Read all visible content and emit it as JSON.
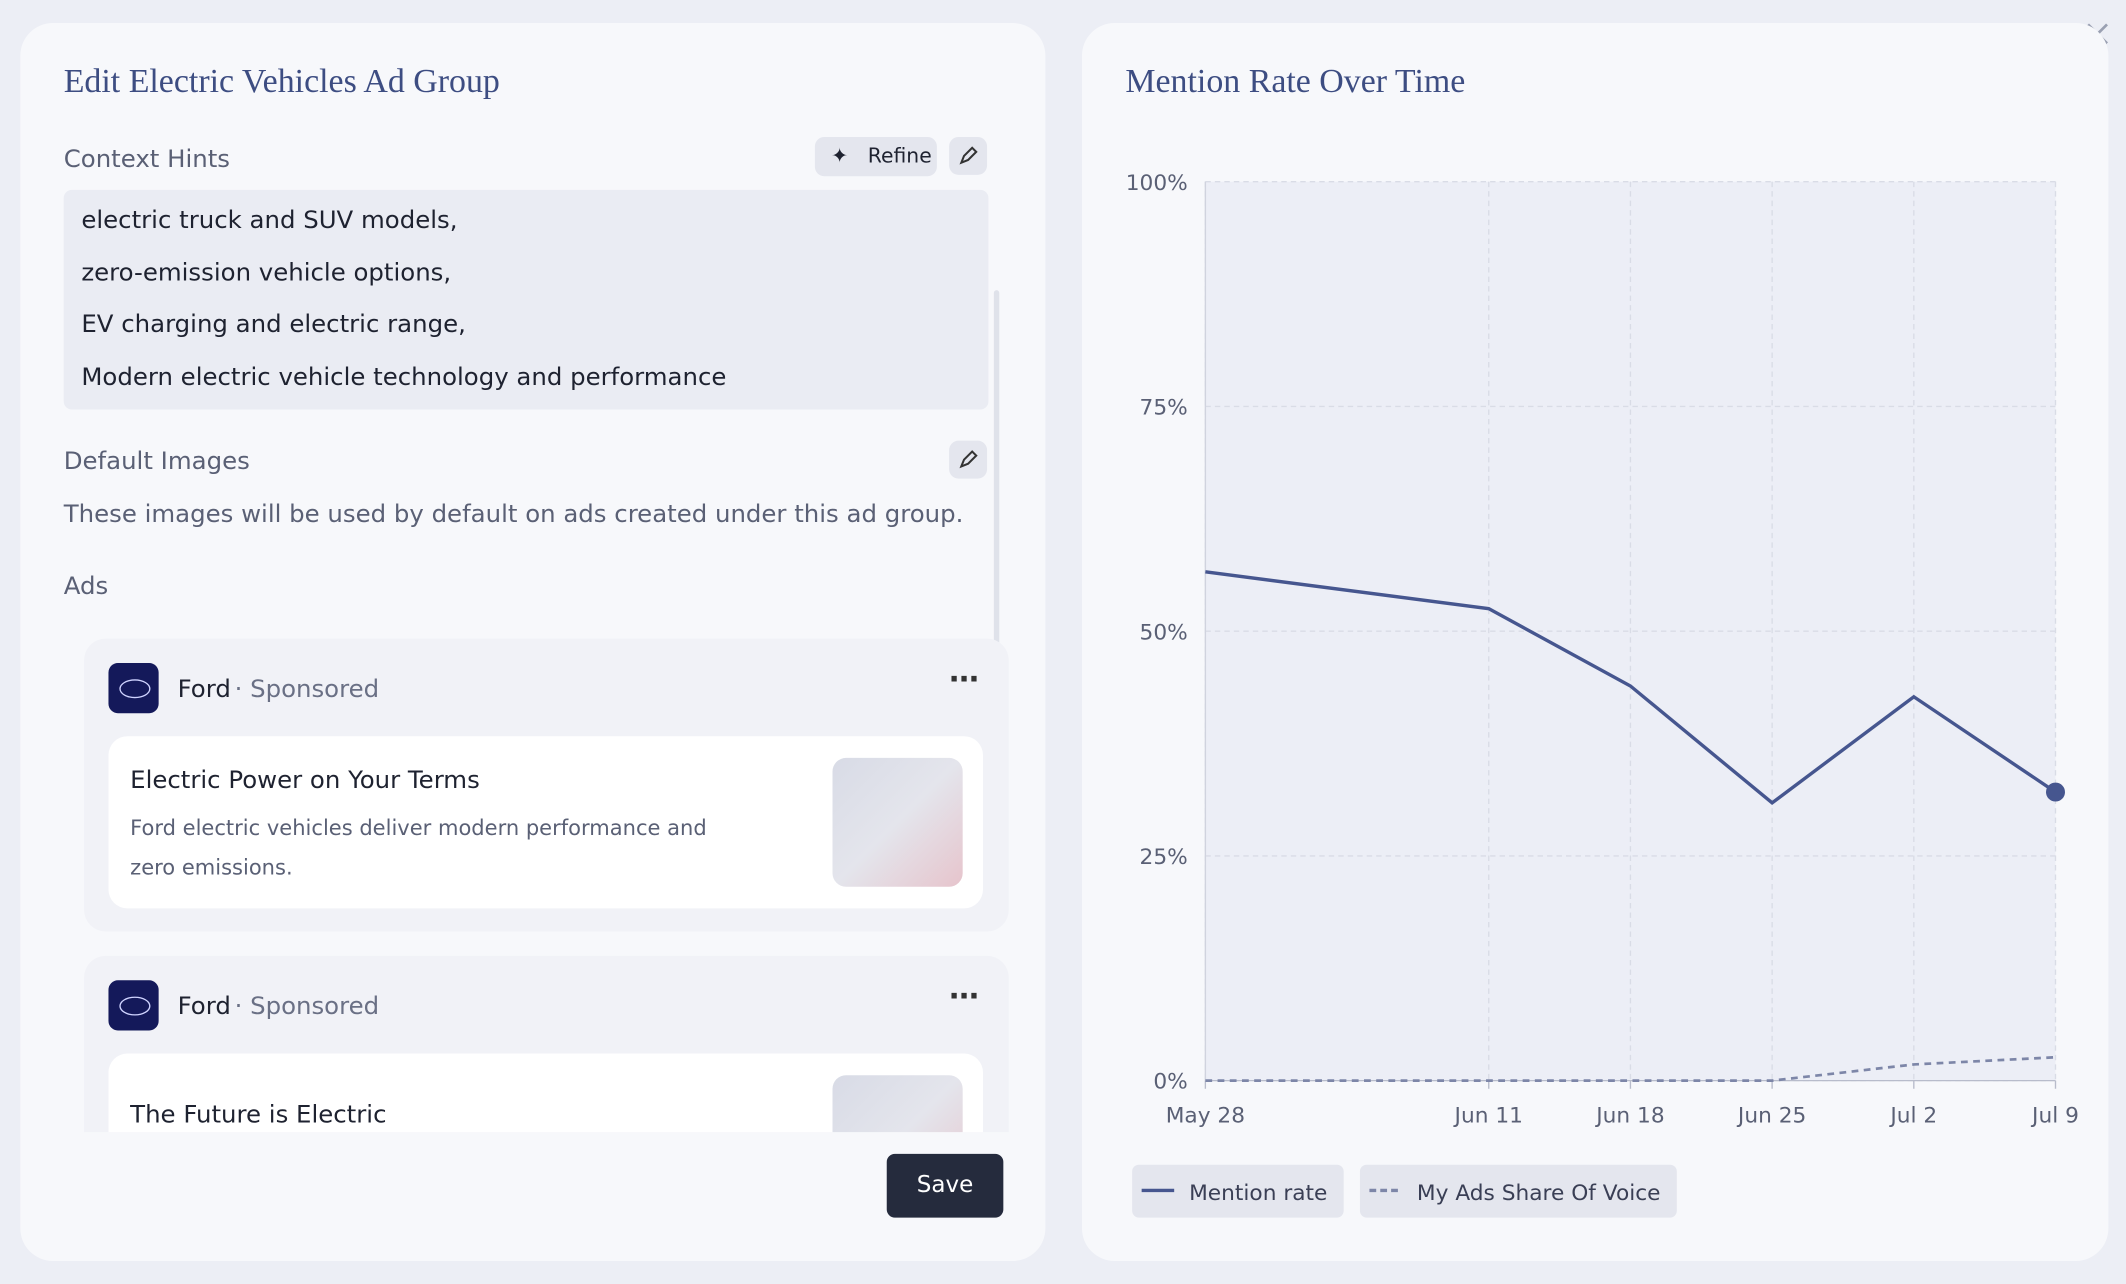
{
  "editor": {
    "title": "Edit Electric Vehicles Ad Group",
    "context_label": "Context Hints",
    "refine": "Refine",
    "hints": [
      "electric truck and SUV models,",
      "zero-emission vehicle options,",
      "EV charging and electric range,",
      "Modern electric vehicle technology and performance"
    ],
    "images_label": "Default Images",
    "images_note": "These images will be used by default on ads created under this ad group.",
    "ads_label": "Ads",
    "ads": [
      {
        "brand": "Ford",
        "tag": "· Sponsored",
        "headline": "Electric Power on Your Terms",
        "body": "Ford electric vehicles deliver modern performance and zero emissions."
      },
      {
        "brand": "Ford",
        "tag": "· Sponsored",
        "headline": "The Future is Electric"
      }
    ],
    "save": "Save"
  },
  "chart_data": {
    "type": "line",
    "title": "Mention Rate Over Time",
    "x": [
      "May 28",
      "Jun 11",
      "Jun 18",
      "Jun 25",
      "Jul 2",
      "Jul 9"
    ],
    "series": [
      {
        "name": "Mention rate",
        "color": "#46568f",
        "values": [
          56.6,
          52.5,
          43.9,
          30.9,
          42.7,
          32.1
        ]
      },
      {
        "name": "My Ads Share Of Voice",
        "color": "#7d86a8",
        "dashed": true,
        "values": [
          0,
          0,
          0,
          0,
          1.8,
          2.6
        ]
      }
    ],
    "ylim": [
      0,
      100
    ],
    "yticks": [
      {
        "value": 0,
        "label": "0%"
      },
      {
        "value": 25,
        "label": "25%"
      },
      {
        "value": 50,
        "label": "50%"
      },
      {
        "value": 75,
        "label": "75%"
      },
      {
        "value": 100,
        "label": "100%"
      }
    ],
    "grid": true
  }
}
